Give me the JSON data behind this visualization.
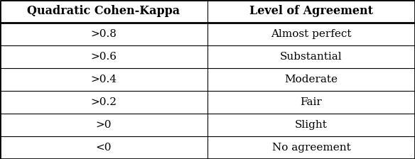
{
  "col_headers": [
    "Quadratic Cohen-Kappa",
    "Level of Agreement"
  ],
  "rows": [
    [
      ">0.8",
      "Almost perfect"
    ],
    [
      ">0.6",
      "Substantial"
    ],
    [
      ">0.4",
      "Moderate"
    ],
    [
      ">0.2",
      "Fair"
    ],
    [
      ">0",
      "Slight"
    ],
    [
      "<0",
      "No agreement"
    ]
  ],
  "header_fontsize": 11.5,
  "cell_fontsize": 11,
  "bg_color": "#ffffff",
  "text_color": "#000000",
  "line_color": "#000000",
  "fig_width": 5.84,
  "fig_height": 2.24,
  "dpi": 100,
  "col_split": 0.5,
  "lw_thick": 2.0,
  "lw_thin": 0.8
}
